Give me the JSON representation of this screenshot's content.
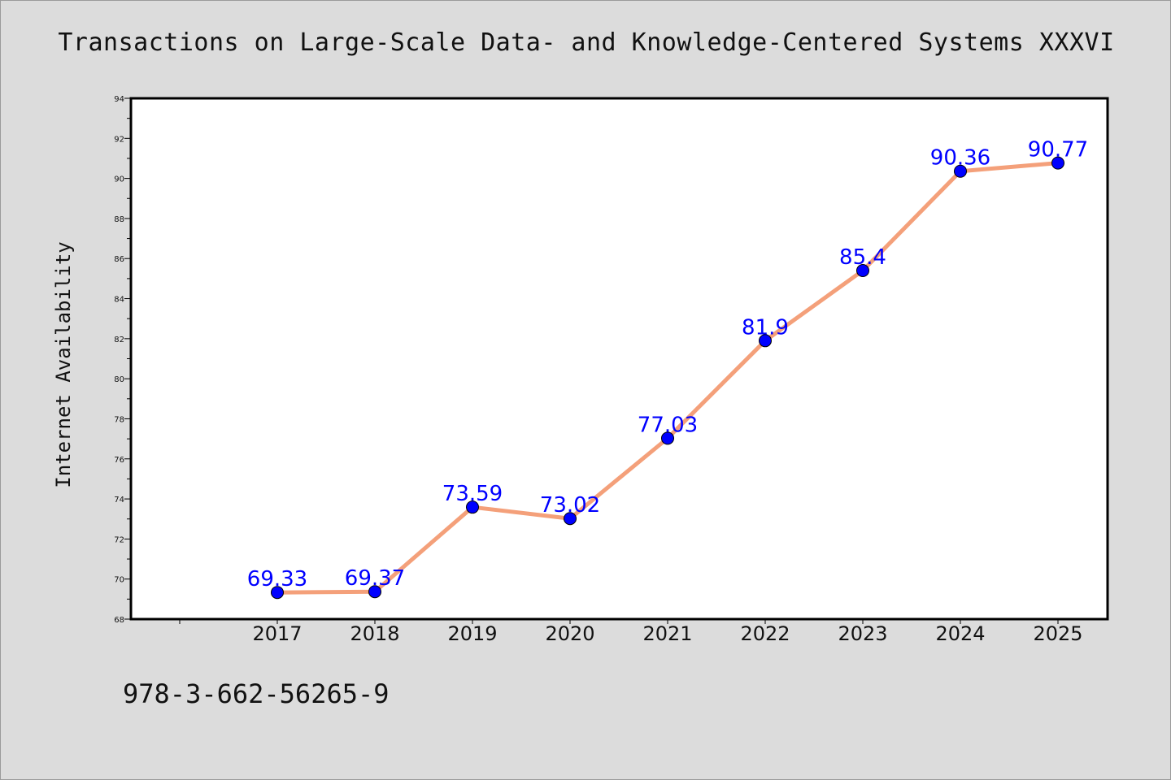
{
  "chart_data": {
    "type": "line",
    "title": "Transactions on Large-Scale Data- and Knowledge-Centered Systems XXXVI",
    "xlabel": "",
    "ylabel": "Internet Availability",
    "categories": [
      "2017",
      "2018",
      "2019",
      "2020",
      "2021",
      "2022",
      "2023",
      "2024",
      "2025"
    ],
    "series": [
      {
        "values": [
          69.33,
          69.37,
          73.59,
          73.02,
          77.03,
          81.9,
          85.4,
          90.36,
          90.77
        ],
        "labels": [
          "69.33",
          "69.37",
          "73.59",
          "73.02",
          "77.03",
          "81.9",
          "85.4",
          "90.36",
          "90.77"
        ],
        "line_color": "#f4a07a",
        "marker_color": "#0000ff"
      }
    ],
    "ylim": [
      68,
      94
    ],
    "yticks": [
      "68",
      "70",
      "72",
      "74",
      "76",
      "78",
      "80",
      "82",
      "84",
      "86",
      "88",
      "90",
      "92",
      "94"
    ],
    "grid": false,
    "legend": "none"
  },
  "footer": {
    "isbn": "978-3-662-56265-9"
  },
  "colors": {
    "background": "#dcdcdc",
    "plot_background": "#ffffff",
    "line": "#f4a07a",
    "marker": "#0000ff",
    "data_label": "#0000ff"
  }
}
